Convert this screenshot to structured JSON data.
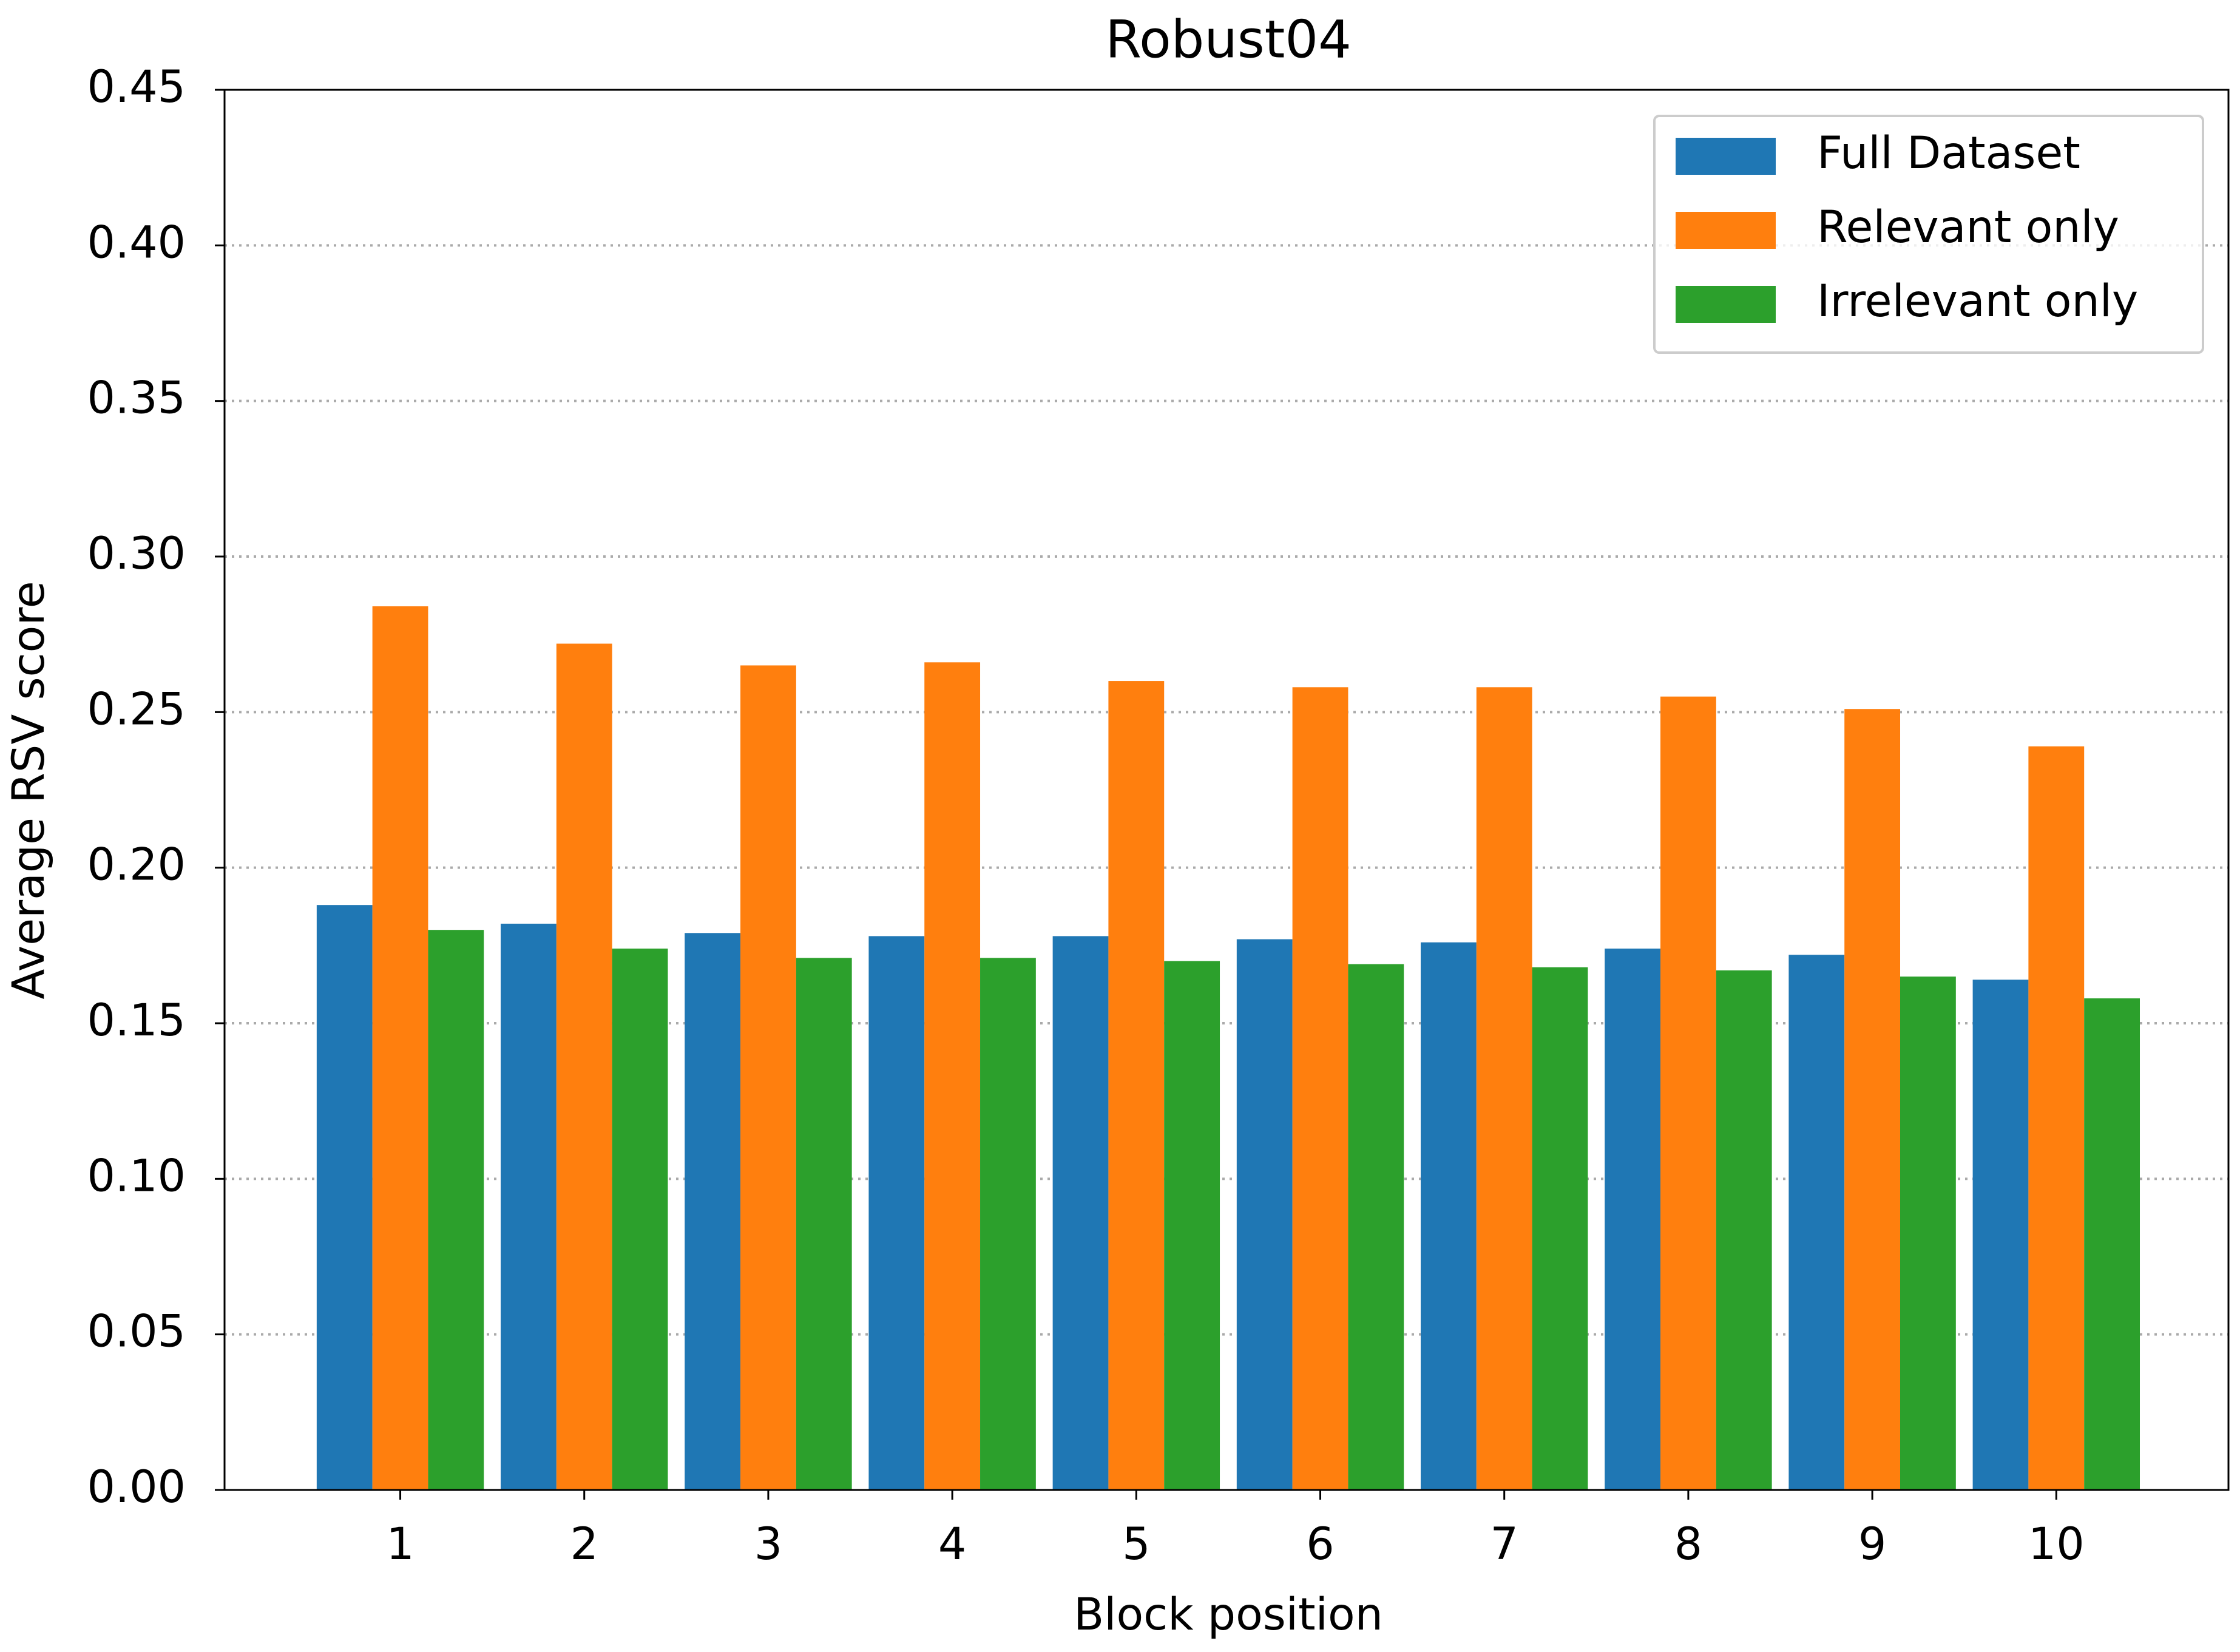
{
  "chart_data": {
    "type": "bar",
    "title": "Robust04",
    "x_label": "Block position",
    "y_label": "Average RSV score",
    "categories": [
      "1",
      "2",
      "3",
      "4",
      "5",
      "6",
      "7",
      "8",
      "9",
      "10"
    ],
    "series": [
      {
        "name": "Full Dataset",
        "color": "#1f77b4",
        "values": [
          0.188,
          0.182,
          0.179,
          0.178,
          0.178,
          0.177,
          0.176,
          0.174,
          0.172,
          0.164
        ]
      },
      {
        "name": "Relevant only",
        "color": "#ff7f0e",
        "values": [
          0.284,
          0.272,
          0.265,
          0.266,
          0.26,
          0.258,
          0.258,
          0.255,
          0.251,
          0.239
        ]
      },
      {
        "name": "Irrelevant only",
        "color": "#2ca02c",
        "values": [
          0.18,
          0.174,
          0.171,
          0.171,
          0.17,
          0.169,
          0.168,
          0.167,
          0.165,
          0.158
        ]
      }
    ],
    "ylim": [
      0,
      0.45
    ],
    "yticks": [
      {
        "value": 0,
        "label": "0.00"
      },
      {
        "value": 0.05,
        "label": "0.05"
      },
      {
        "value": 0.1,
        "label": "0.10"
      },
      {
        "value": 0.15,
        "label": "0.15"
      },
      {
        "value": 0.2,
        "label": "0.20"
      },
      {
        "value": 0.25,
        "label": "0.25"
      },
      {
        "value": 0.3,
        "label": "0.30"
      },
      {
        "value": 0.35,
        "label": "0.35"
      },
      {
        "value": 0.4,
        "label": "0.40"
      },
      {
        "value": 0.45,
        "label": "0.45"
      }
    ],
    "grid": true,
    "legend": "upper right"
  }
}
